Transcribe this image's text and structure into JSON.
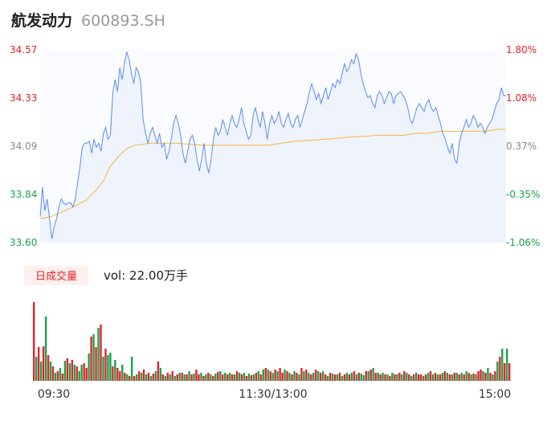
{
  "header": {
    "name": "航发动力",
    "code": "600893.SH"
  },
  "volume_panel": {
    "badge": "日成交量",
    "vol_label": "vol: 22.00万手"
  },
  "colors": {
    "price_line": "#5b8def",
    "avg_line": "#f5b73b",
    "area_fill": "#eef3fc",
    "up": "#e8202a",
    "down": "#1aa34a",
    "flat": "#888888"
  },
  "chart_data": [
    {
      "type": "line",
      "title": "",
      "y_left_ticks": [
        "34.57",
        "34.33",
        "34.09",
        "33.84",
        "33.60"
      ],
      "y_right_ticks": [
        "1.80%",
        "1.08%",
        "0.37%",
        "-0.35%",
        "-1.06%"
      ],
      "ylim": [
        33.6,
        34.57
      ],
      "x_ticks": [
        "09:30",
        "11:30/13:00",
        "15:00"
      ],
      "series": [
        {
          "values": [
            33.73,
            33.88,
            33.76,
            33.82,
            33.72,
            33.62,
            33.68,
            33.72,
            33.78,
            33.82,
            33.8,
            33.79,
            33.8,
            33.8,
            33.78,
            33.82,
            33.9,
            33.98,
            34.08,
            34.1,
            34.1,
            34.11,
            34.05,
            34.12,
            34.08,
            34.1,
            34.06,
            34.15,
            34.18,
            34.12,
            34.14,
            34.35,
            34.42,
            34.36,
            34.48,
            34.42,
            34.5,
            34.56,
            34.52,
            34.45,
            34.4,
            34.48,
            34.46,
            34.4,
            34.22,
            34.15,
            34.1,
            34.15,
            34.18,
            34.14,
            34.1,
            34.15,
            34.08,
            34.1,
            34.02,
            34.06,
            34.12,
            34.2,
            34.24,
            34.2,
            34.14,
            34.05,
            34.0,
            34.06,
            34.12,
            34.14,
            34.1,
            34.02,
            33.96,
            34.02,
            34.1,
            34.0,
            33.95,
            34.02,
            34.12,
            34.18,
            34.14,
            34.16,
            34.22,
            34.18,
            34.14,
            34.2,
            34.24,
            34.2,
            34.18,
            34.22,
            34.28,
            34.2,
            34.16,
            34.12,
            34.14,
            34.24,
            34.28,
            34.22,
            34.18,
            34.26,
            34.2,
            34.12,
            34.2,
            34.24,
            34.2,
            34.22,
            34.26,
            34.2,
            34.18,
            34.22,
            34.25,
            34.2,
            34.18,
            34.22,
            34.24,
            34.18,
            34.22,
            34.26,
            34.3,
            34.36,
            34.4,
            34.36,
            34.32,
            34.35,
            34.3,
            34.34,
            34.38,
            34.32,
            34.36,
            34.4,
            34.38,
            34.42,
            34.4,
            34.45,
            34.5,
            34.46,
            34.48,
            34.52,
            34.5,
            34.55,
            34.52,
            34.45,
            34.4,
            34.36,
            34.33,
            34.34,
            34.3,
            34.28,
            34.34,
            34.36,
            34.34,
            34.3,
            34.33,
            34.36,
            34.35,
            34.3,
            34.34,
            34.35,
            34.36,
            34.34,
            34.32,
            34.28,
            34.22,
            34.2,
            34.24,
            34.28,
            34.3,
            34.28,
            34.26,
            34.3,
            34.32,
            34.28,
            34.26,
            34.28,
            34.24,
            34.2,
            34.15,
            34.12,
            34.08,
            34.05,
            34.1,
            34.02,
            34.0,
            34.1,
            34.15,
            34.18,
            34.22,
            34.18,
            34.2,
            34.24,
            34.22,
            34.18,
            34.2,
            34.18,
            34.15,
            34.18,
            34.2,
            34.22,
            34.26,
            34.3,
            34.32,
            34.38,
            34.34,
            34.34
          ],
          "x_max": 228
        },
        {
          "values": [
            33.72,
            33.73,
            33.76,
            33.79,
            33.81,
            33.86,
            33.91,
            33.98,
            34.03,
            34.07,
            34.09,
            34.1,
            34.1,
            34.09,
            34.09,
            34.09,
            34.09,
            34.09,
            34.1,
            34.11,
            34.12,
            34.13,
            34.14,
            34.14,
            34.15,
            34.15,
            34.16,
            34.16,
            34.16,
            34.16,
            34.17,
            34.17
          ],
          "x": [
            0,
            5,
            12,
            18,
            22,
            27,
            31,
            34,
            38,
            42,
            46,
            54,
            66,
            80,
            90,
            98,
            104,
            112,
            118,
            125,
            140,
            150,
            166,
            178,
            184,
            190,
            196,
            204,
            210,
            218,
            224,
            228
          ]
        }
      ]
    },
    {
      "type": "bar",
      "title": "",
      "series": [
        {
          "values": [
            98,
            30,
            42,
            24,
            43,
            80,
            32,
            24,
            18,
            10,
            12,
            16,
            9,
            25,
            28,
            22,
            26,
            20,
            18,
            12,
            20,
            22,
            16,
            34,
            55,
            58,
            42,
            66,
            70,
            30,
            40,
            32,
            35,
            18,
            26,
            16,
            12,
            20,
            10,
            8,
            6,
            30,
            6,
            8,
            12,
            10,
            14,
            8,
            10,
            6,
            9,
            12,
            24,
            16,
            8,
            6,
            10,
            8,
            12,
            6,
            8,
            10,
            10,
            8,
            8,
            12,
            8,
            9,
            14,
            8,
            10,
            6,
            8,
            10,
            8,
            6,
            9,
            11,
            12,
            8,
            10,
            8,
            10,
            8,
            8,
            12,
            10,
            8,
            10,
            6,
            9,
            7,
            8,
            10,
            12,
            8,
            14,
            16,
            14,
            12,
            10,
            14,
            12,
            16,
            10,
            14,
            12,
            10,
            8,
            12,
            10,
            8,
            16,
            12,
            14,
            10,
            8,
            10,
            14,
            12,
            10,
            12,
            8,
            6,
            10,
            9,
            8,
            8,
            10,
            6,
            8,
            10,
            8,
            10,
            12,
            8,
            10,
            9,
            7,
            12,
            12,
            14,
            16,
            10,
            10,
            8,
            10,
            8,
            8,
            6,
            10,
            8,
            8,
            10,
            8,
            12,
            10,
            8,
            6,
            8,
            10,
            8,
            8,
            6,
            8,
            10,
            12,
            8,
            10,
            8,
            8,
            10,
            12,
            10,
            8,
            8,
            10,
            10,
            8,
            10,
            8,
            12,
            10,
            8,
            9,
            8,
            12,
            14,
            12,
            10,
            16,
            10,
            8,
            12,
            24,
            30,
            40,
            22,
            40,
            22
          ],
          "colors": "rgrgrgrgrgrgrgrgrgrggrrgrgrgrgrggrgrrgrgrgrgrgrgrgrgrgrgrgrgrgrgrgrgrrgrgrgrgrgrgrgrgrgrgrgrgrgrgrgrgrgrrgrgrgrgrgrgrgrgrgrgrgrgrgrgrgrgrggrgrgrgrgrgrgrgrgrgrgrgrrgrgrgrgrgrgrgrgrgrgrgrgrrgrgrgrgrgrgrgrgrgrgrgrrgrgrgrgrgrgrrrg"
        }
      ]
    }
  ]
}
